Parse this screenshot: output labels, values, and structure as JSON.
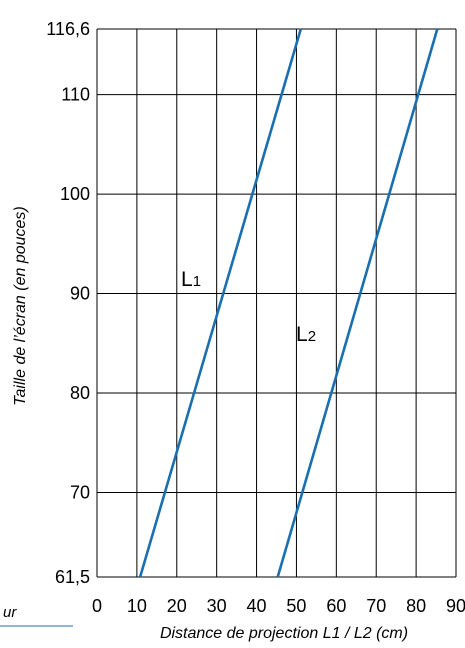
{
  "chart_data": {
    "type": "line",
    "title": "",
    "xlabel": "Distance de projection L1 / L2 (cm)",
    "ylabel": "Taille de l’écran (en pouces)",
    "xlim": [
      0,
      90
    ],
    "ylim": [
      61.5,
      116.6
    ],
    "x_ticks": [
      "0",
      "10",
      "20",
      "30",
      "40",
      "50",
      "60",
      "70",
      "80",
      "90"
    ],
    "y_ticks": [
      {
        "value": 61.5,
        "label": "61,5"
      },
      {
        "value": 70,
        "label": "70"
      },
      {
        "value": 80,
        "label": "80"
      },
      {
        "value": 90,
        "label": "90"
      },
      {
        "value": 100,
        "label": "100"
      },
      {
        "value": 110,
        "label": "110"
      },
      {
        "value": 116.6,
        "label": "116,6"
      }
    ],
    "grid": true,
    "line_color": "#1a6fb0",
    "series": [
      {
        "name": "L1",
        "name_main": "L",
        "name_sub": "1",
        "x": [
          10.8,
          51.1
        ],
        "y": [
          61.5,
          116.6
        ]
      },
      {
        "name": "L2",
        "name_main": "L",
        "name_sub": "2",
        "x": [
          45.3,
          85.3
        ],
        "y": [
          61.5,
          116.6
        ]
      }
    ],
    "corner_fragment": "ur"
  }
}
